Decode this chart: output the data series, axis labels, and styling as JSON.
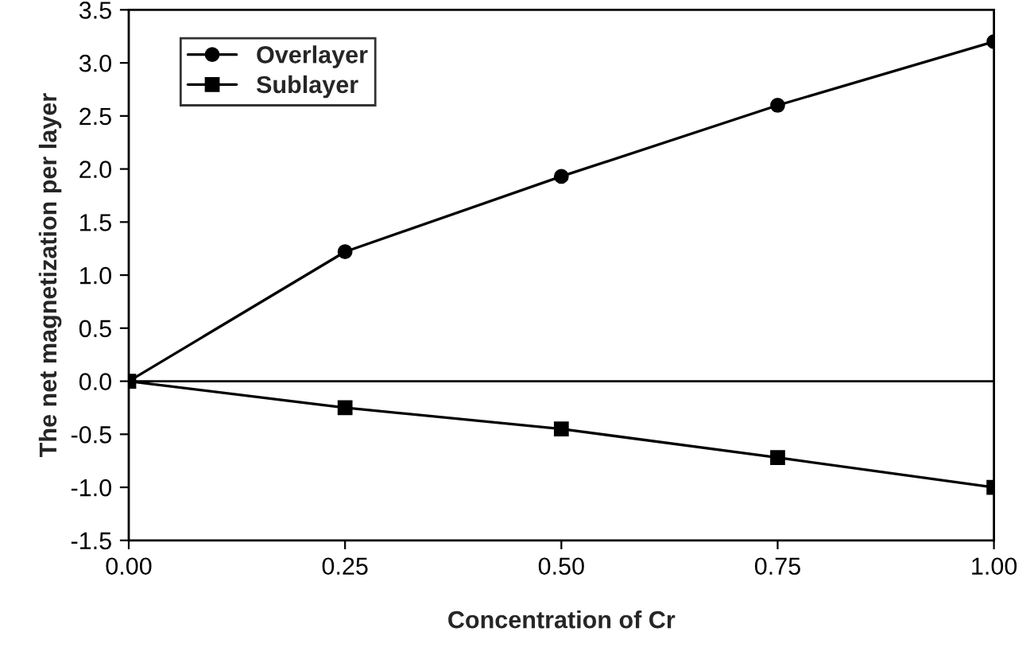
{
  "chart_data": {
    "type": "line",
    "xlabel": "Concentration of Cr",
    "ylabel": "The net magnetization per layer",
    "x": [
      0,
      0.25,
      0.5,
      0.75,
      1.0
    ],
    "series": [
      {
        "name": "Overlayer",
        "color": "#000000",
        "marker": "circle",
        "values": [
          0,
          1.22,
          1.93,
          2.6,
          3.2
        ]
      },
      {
        "name": "Sublayer",
        "color": "#000000",
        "marker": "square",
        "values": [
          0,
          -0.25,
          -0.45,
          -0.72,
          -1.0
        ]
      }
    ],
    "xlim": [
      0,
      1
    ],
    "xticks": [
      {
        "value": 0,
        "label": "0.00"
      },
      {
        "value": 0.25,
        "label": "0.25"
      },
      {
        "value": 0.5,
        "label": "0.50"
      },
      {
        "value": 0.75,
        "label": "0.75"
      },
      {
        "value": 1,
        "label": "1.00"
      }
    ],
    "ylim": [
      -1.5,
      3.5
    ],
    "yticks": [
      {
        "value": -1.5,
        "label": "-1.5"
      },
      {
        "value": -1,
        "label": "-1.0"
      },
      {
        "value": -0.5,
        "label": "-0.5"
      },
      {
        "value": 0,
        "label": "0.0"
      },
      {
        "value": 0.5,
        "label": "0.5"
      },
      {
        "value": 1,
        "label": "1.0"
      },
      {
        "value": 1.5,
        "label": "1.5"
      },
      {
        "value": 2,
        "label": "2.0"
      },
      {
        "value": 2.5,
        "label": "2.5"
      },
      {
        "value": 3,
        "label": "3.0"
      },
      {
        "value": 3.5,
        "label": "3.5"
      }
    ],
    "ref_lines": [
      {
        "axis": "y",
        "value": 0,
        "label": null,
        "color": "#000000"
      }
    ],
    "grid": false,
    "legend": "top left",
    "line_style": "solid"
  }
}
